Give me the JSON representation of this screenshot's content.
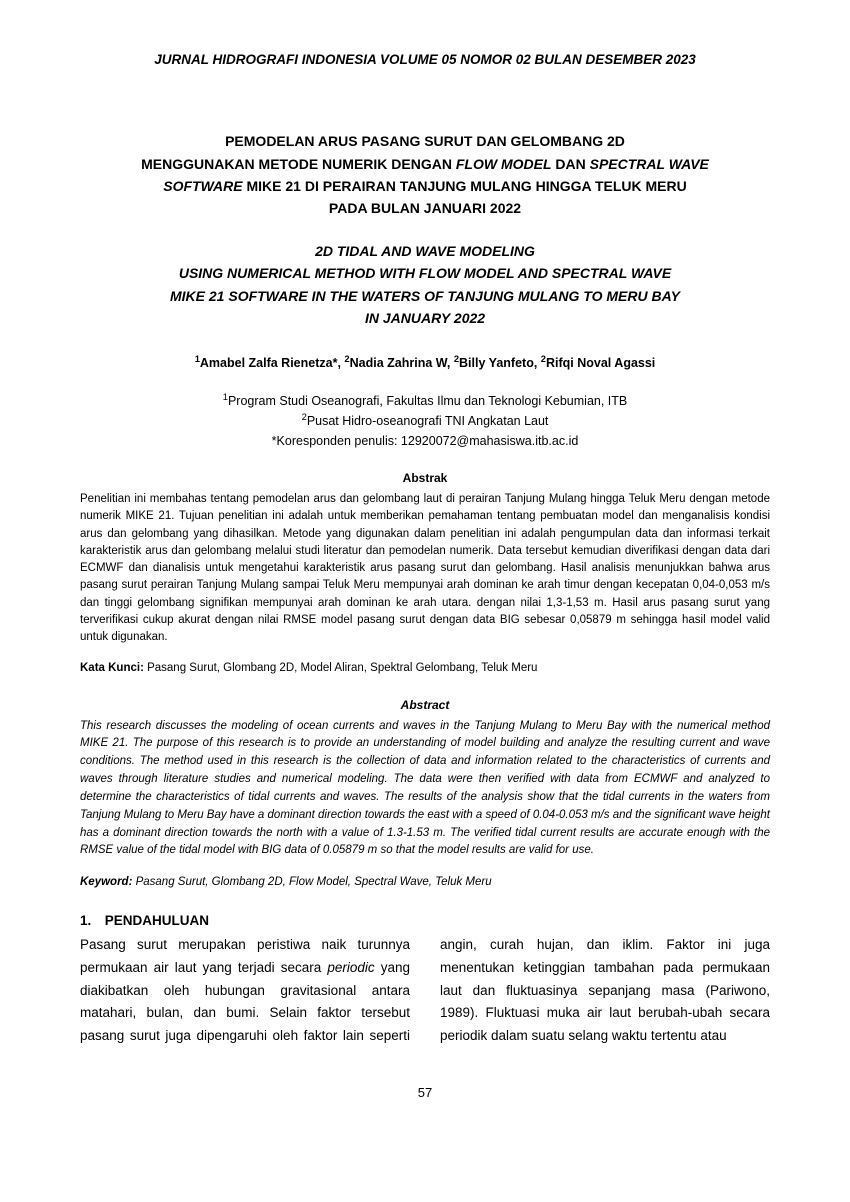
{
  "journal_header": "JURNAL HIDROGRAFI INDONESIA VOLUME 05 NOMOR 02 BULAN DESEMBER 2023",
  "title_id_l1": "PEMODELAN ARUS PASANG SURUT DAN GELOMBANG 2D",
  "title_id_l2a": "MENGGUNAKAN METODE NUMERIK DENGAN ",
  "title_id_l2b_i": "FLOW MODEL",
  "title_id_l2c": " DAN ",
  "title_id_l2d_i": "SPECTRAL WAVE",
  "title_id_l3a_i": "SOFTWARE",
  "title_id_l3b": " MIKE 21 DI PERAIRAN TANJUNG MULANG HINGGA TELUK MERU",
  "title_id_l4": "PADA BULAN JANUARI 2022",
  "title_en_l1": "2D TIDAL AND WAVE MODELING",
  "title_en_l2": "USING NUMERICAL METHOD WITH FLOW MODEL AND SPECTRAL WAVE",
  "title_en_l3": "MIKE 21 SOFTWARE IN THE WATERS OF TANJUNG MULANG TO MERU BAY",
  "title_en_l4": "IN JANUARY 2022",
  "authors": {
    "a1_sup": "1",
    "a1": "Amabel Zalfa Rienetza*, ",
    "a2_sup": "2",
    "a2": "Nadia Zahrina W, ",
    "a3_sup": "2",
    "a3": "Billy Yanfeto, ",
    "a4_sup": "2",
    "a4": "Rifqi Noval Agassi"
  },
  "aff": {
    "l1_sup": "1",
    "l1": "Program Studi Oseanografi, Fakultas Ilmu dan Teknologi Kebumian, ITB",
    "l2_sup": "2",
    "l2": "Pusat Hidro-oseanografi TNI Angkatan Laut",
    "l3": "*Koresponden penulis: 12920072@mahasiswa.itb.ac.id"
  },
  "abstrak_heading": "Abstrak",
  "abstrak_body": "Penelitian ini membahas tentang pemodelan arus dan gelombang laut di perairan Tanjung Mulang hingga Teluk Meru dengan metode numerik MIKE 21. Tujuan penelitian ini adalah untuk memberikan pemahaman tentang pembuatan model dan menganalisis kondisi arus dan gelombang yang dihasilkan. Metode yang digunakan dalam penelitian ini adalah pengumpulan data dan informasi terkait karakteristik arus dan gelombang melalui studi literatur dan pemodelan numerik. Data tersebut kemudian diverifikasi dengan data dari ECMWF dan dianalisis untuk mengetahui karakteristik arus pasang surut dan gelombang. Hasil analisis menunjukkan bahwa arus pasang surut perairan Tanjung Mulang sampai Teluk Meru mempunyai arah dominan ke arah timur dengan kecepatan 0,04-0,053 m/s dan tinggi gelombang signifikan mempunyai arah dominan ke arah utara. dengan nilai 1,3-1,53 m. Hasil arus pasang surut yang terverifikasi cukup akurat dengan nilai RMSE model pasang surut dengan data BIG sebesar 0,05879 m sehingga hasil model valid untuk digunakan.",
  "kata_kunci_label": "Kata Kunci: ",
  "kata_kunci_value": "Pasang Surut, Glombang 2D, Model Aliran, Spektral Gelombang, Teluk Meru",
  "abstract_heading": "Abstract",
  "abstract_body": "This research discusses the modeling of ocean currents and waves in the Tanjung Mulang to Meru Bay with the numerical method MIKE 21. The purpose of this research is to provide an understanding of model building and analyze the resulting current and wave conditions. The method used in this research is the collection of data and information related to the characteristics of currents and waves through literature studies and numerical modeling. The data were then verified with data from ECMWF and analyzed to determine the characteristics of tidal currents and waves. The results of the analysis show that the tidal currents in the waters from Tanjung Mulang to Meru Bay have a dominant direction towards the east with a speed of 0.04-0.053 m/s and the significant wave height has a dominant direction towards the north with a value of 1.3-1.53 m. The verified tidal current results are accurate enough with the RMSE value of the tidal model with BIG data of 0.05879 m so that the model results are valid for use.",
  "keyword_label": "Keyword: ",
  "keyword_value": "Pasang Surut, Glombang 2D, Flow Model, Spectral Wave, Teluk Meru",
  "section1_heading": "1. PENDAHULUAN",
  "body_p1a": "Pasang surut merupakan peristiwa naik turunnya permukaan air laut yang terjadi secara ",
  "body_p1_periodic": "periodic",
  "body_p1b": " yang diakibatkan oleh hubungan gravitasional antara matahari, bulan, dan bumi. Selain faktor tersebut pasang surut juga dipengaruhi oleh faktor lain seperti angin, curah hujan, dan iklim. Faktor ini juga menentukan ketinggian tambahan pada permukaan laut dan fluktuasinya sepanjang masa (Pariwono, 1989). Fluktuasi muka air laut berubah-ubah secara periodik dalam suatu selang waktu tertentu atau",
  "page_number": "57"
}
